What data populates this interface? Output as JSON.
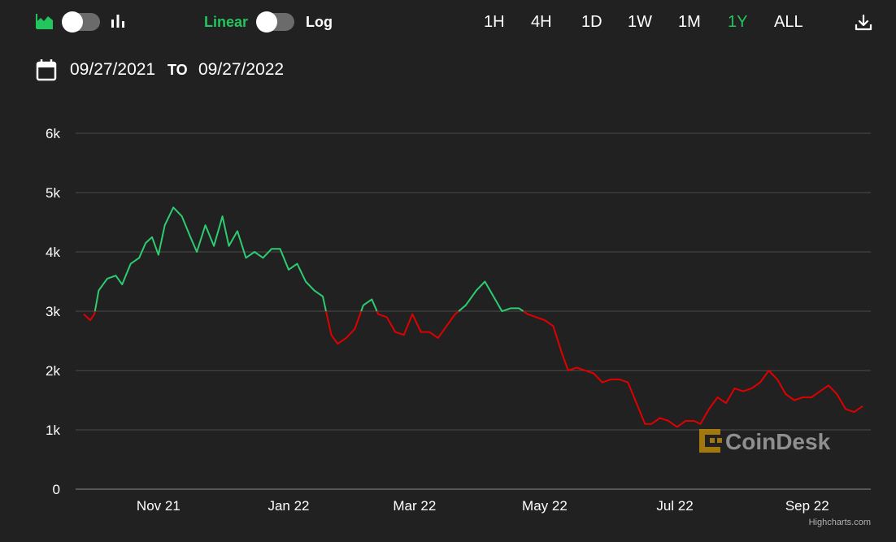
{
  "toolbar": {
    "chart_type_icons": [
      "area-chart-icon",
      "bar-chart-icon"
    ],
    "scale_linear_label": "Linear",
    "scale_log_label": "Log",
    "ranges": [
      "1H",
      "4H",
      "1D",
      "1W",
      "1M",
      "1Y",
      "ALL"
    ],
    "active_range": "1Y",
    "download_icon": "download-icon"
  },
  "date_range": {
    "calendar_icon": "calendar-icon",
    "from": "09/27/2021",
    "to_label": "TO",
    "to": "09/27/2022"
  },
  "watermark": {
    "text": "CoinDesk",
    "icon": "coindesk-logo-icon"
  },
  "credits": "Highcharts.com",
  "colors": {
    "background": "#212121",
    "accent": "#22c55e",
    "up": "#2ecc71",
    "down": "#e00000",
    "grid": "#4a4a4a"
  },
  "chart_data": {
    "type": "line",
    "x_range": [
      "2021-09-27",
      "2022-09-27"
    ],
    "ylim": [
      0,
      6000
    ],
    "y_ticks": [
      {
        "value": 0,
        "label": "0"
      },
      {
        "value": 1000,
        "label": "1k"
      },
      {
        "value": 2000,
        "label": "2k"
      },
      {
        "value": 3000,
        "label": "3k"
      },
      {
        "value": 4000,
        "label": "4k"
      },
      {
        "value": 5000,
        "label": "5k"
      },
      {
        "value": 6000,
        "label": "6k"
      }
    ],
    "x_ticks": [
      {
        "date": "2021-11-01",
        "label": "Nov 21"
      },
      {
        "date": "2022-01-01",
        "label": "Jan 22"
      },
      {
        "date": "2022-03-01",
        "label": "Mar 22"
      },
      {
        "date": "2022-05-01",
        "label": "May 22"
      },
      {
        "date": "2022-07-01",
        "label": "Jul 22"
      },
      {
        "date": "2022-09-01",
        "label": "Sep 22"
      }
    ],
    "grid": true,
    "legend": "none",
    "threshold": 3000,
    "series": [
      {
        "points": [
          [
            "2021-09-27",
            2950
          ],
          [
            "2021-09-30",
            2850
          ],
          [
            "2021-10-02",
            2950
          ],
          [
            "2021-10-04",
            3350
          ],
          [
            "2021-10-08",
            3550
          ],
          [
            "2021-10-12",
            3600
          ],
          [
            "2021-10-15",
            3450
          ],
          [
            "2021-10-19",
            3800
          ],
          [
            "2021-10-23",
            3900
          ],
          [
            "2021-10-26",
            4150
          ],
          [
            "2021-10-29",
            4250
          ],
          [
            "2021-11-01",
            3950
          ],
          [
            "2021-11-04",
            4450
          ],
          [
            "2021-11-08",
            4750
          ],
          [
            "2021-11-12",
            4600
          ],
          [
            "2021-11-16",
            4250
          ],
          [
            "2021-11-19",
            4000
          ],
          [
            "2021-11-23",
            4450
          ],
          [
            "2021-11-27",
            4100
          ],
          [
            "2021-12-01",
            4600
          ],
          [
            "2021-12-04",
            4100
          ],
          [
            "2021-12-08",
            4350
          ],
          [
            "2021-12-12",
            3900
          ],
          [
            "2021-12-16",
            4000
          ],
          [
            "2021-12-20",
            3900
          ],
          [
            "2021-12-24",
            4050
          ],
          [
            "2021-12-28",
            4050
          ],
          [
            "2022-01-01",
            3700
          ],
          [
            "2022-01-05",
            3800
          ],
          [
            "2022-01-09",
            3500
          ],
          [
            "2022-01-13",
            3350
          ],
          [
            "2022-01-17",
            3250
          ],
          [
            "2022-01-21",
            2600
          ],
          [
            "2022-01-24",
            2450
          ],
          [
            "2022-01-28",
            2550
          ],
          [
            "2022-02-01",
            2700
          ],
          [
            "2022-02-05",
            3100
          ],
          [
            "2022-02-09",
            3200
          ],
          [
            "2022-02-12",
            2950
          ],
          [
            "2022-02-16",
            2900
          ],
          [
            "2022-02-20",
            2650
          ],
          [
            "2022-02-24",
            2600
          ],
          [
            "2022-02-28",
            2950
          ],
          [
            "2022-03-04",
            2650
          ],
          [
            "2022-03-08",
            2650
          ],
          [
            "2022-03-12",
            2550
          ],
          [
            "2022-03-16",
            2750
          ],
          [
            "2022-03-20",
            2950
          ],
          [
            "2022-03-25",
            3100
          ],
          [
            "2022-03-30",
            3350
          ],
          [
            "2022-04-03",
            3500
          ],
          [
            "2022-04-07",
            3250
          ],
          [
            "2022-04-11",
            3000
          ],
          [
            "2022-04-15",
            3050
          ],
          [
            "2022-04-19",
            3050
          ],
          [
            "2022-04-23",
            2950
          ],
          [
            "2022-04-27",
            2900
          ],
          [
            "2022-05-01",
            2850
          ],
          [
            "2022-05-05",
            2750
          ],
          [
            "2022-05-09",
            2300
          ],
          [
            "2022-05-12",
            2000
          ],
          [
            "2022-05-16",
            2050
          ],
          [
            "2022-05-20",
            2000
          ],
          [
            "2022-05-24",
            1950
          ],
          [
            "2022-05-28",
            1800
          ],
          [
            "2022-06-01",
            1850
          ],
          [
            "2022-06-05",
            1850
          ],
          [
            "2022-06-09",
            1800
          ],
          [
            "2022-06-13",
            1450
          ],
          [
            "2022-06-17",
            1100
          ],
          [
            "2022-06-20",
            1100
          ],
          [
            "2022-06-24",
            1200
          ],
          [
            "2022-06-28",
            1150
          ],
          [
            "2022-07-02",
            1050
          ],
          [
            "2022-07-06",
            1150
          ],
          [
            "2022-07-10",
            1150
          ],
          [
            "2022-07-13",
            1100
          ],
          [
            "2022-07-17",
            1350
          ],
          [
            "2022-07-21",
            1550
          ],
          [
            "2022-07-25",
            1450
          ],
          [
            "2022-07-29",
            1700
          ],
          [
            "2022-08-02",
            1650
          ],
          [
            "2022-08-06",
            1700
          ],
          [
            "2022-08-10",
            1800
          ],
          [
            "2022-08-14",
            2000
          ],
          [
            "2022-08-18",
            1850
          ],
          [
            "2022-08-22",
            1600
          ],
          [
            "2022-08-26",
            1500
          ],
          [
            "2022-08-30",
            1550
          ],
          [
            "2022-09-03",
            1550
          ],
          [
            "2022-09-07",
            1650
          ],
          [
            "2022-09-11",
            1750
          ],
          [
            "2022-09-15",
            1600
          ],
          [
            "2022-09-19",
            1350
          ],
          [
            "2022-09-23",
            1300
          ],
          [
            "2022-09-27",
            1400
          ]
        ]
      }
    ]
  }
}
